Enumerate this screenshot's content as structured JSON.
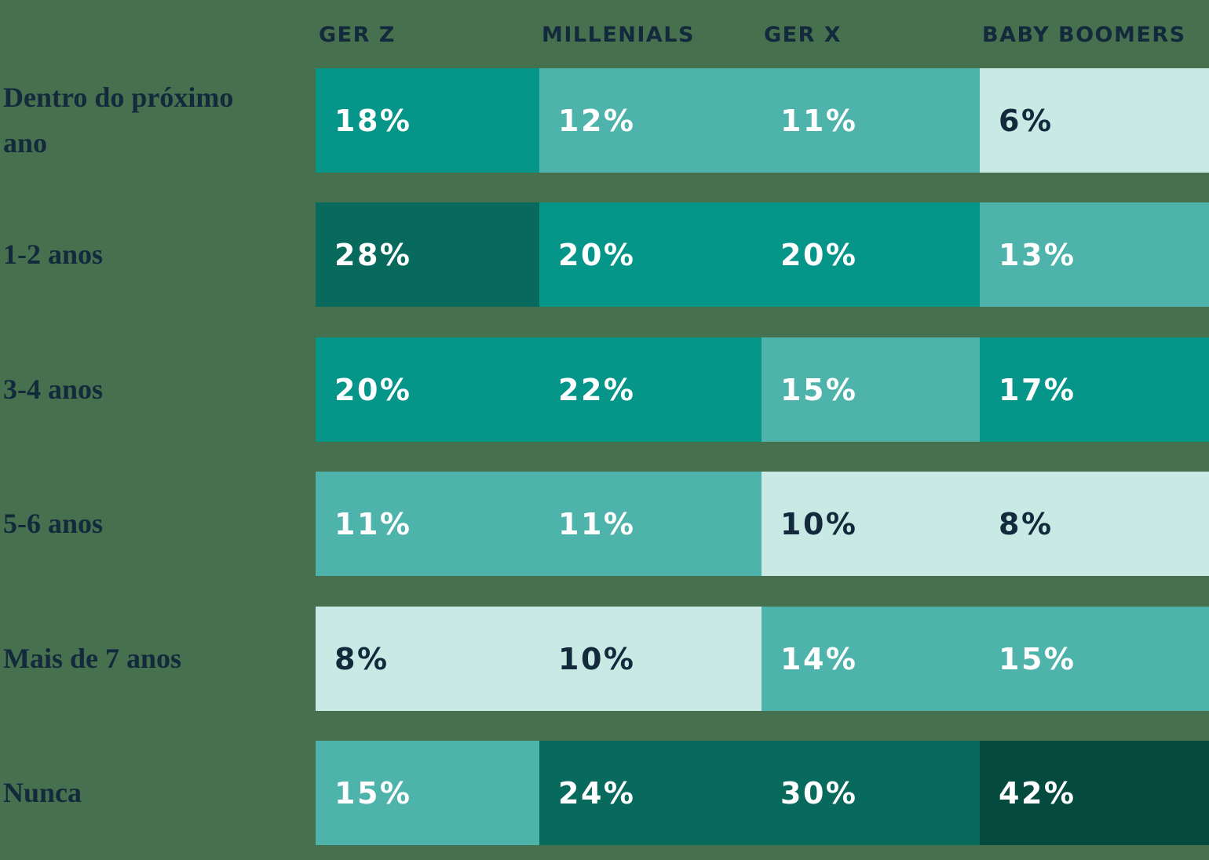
{
  "chart_data": {
    "type": "heatmap",
    "unit": "%",
    "columns": [
      "GER Z",
      "MILLENIALS",
      "GER X",
      "BABY BOOMERS"
    ],
    "rows": [
      {
        "label": "Dentro do próximo ano",
        "values": [
          18,
          12,
          11,
          6
        ]
      },
      {
        "label": "1-2 anos",
        "values": [
          28,
          20,
          20,
          13
        ]
      },
      {
        "label": "3-4 anos",
        "values": [
          20,
          22,
          15,
          17
        ]
      },
      {
        "label": "5-6 anos",
        "values": [
          11,
          11,
          10,
          8
        ]
      },
      {
        "label": "Mais de 7 anos",
        "values": [
          8,
          10,
          14,
          15
        ]
      },
      {
        "label": "Nunca",
        "values": [
          15,
          24,
          30,
          42
        ]
      }
    ],
    "legend_position": "none",
    "grid": false
  },
  "palette": {
    "background": "#47704F",
    "label_text": "#13293C",
    "color_scale": [
      {
        "max": 10,
        "bg": "#C9EAE4",
        "text": "#13293C"
      },
      {
        "max": 16,
        "bg": "#4EB3AB",
        "text": "#FFFFFF"
      },
      {
        "max": 23,
        "bg": "#069689",
        "text": "#FFFFFF"
      },
      {
        "max": 35,
        "bg": "#076A5C",
        "text": "#FFFFFF"
      },
      {
        "max": 100,
        "bg": "#044A3E",
        "text": "#FFFFFF"
      }
    ]
  }
}
